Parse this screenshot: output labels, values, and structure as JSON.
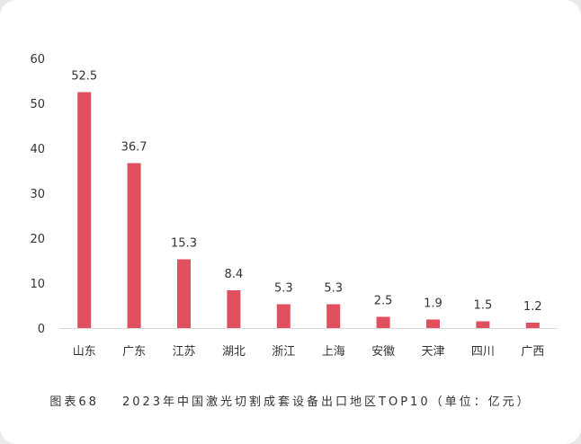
{
  "chart_data": {
    "type": "bar",
    "categories": [
      "山东",
      "广东",
      "江苏",
      "湖北",
      "浙江",
      "上海",
      "安徽",
      "天津",
      "四川",
      "广西"
    ],
    "values": [
      52.5,
      36.7,
      15.3,
      8.4,
      5.3,
      5.3,
      2.5,
      1.9,
      1.5,
      1.2
    ],
    "value_labels": [
      "52.5",
      "36.7",
      "15.3",
      "8.4",
      "5.3",
      "5.3",
      "2.5",
      "1.9",
      "1.5",
      "1.2"
    ],
    "yticks": [
      "0",
      "10",
      "20",
      "30",
      "40",
      "50",
      "60"
    ],
    "ylim": [
      0,
      60
    ],
    "grid": false,
    "legend": "none",
    "bar_color": "#e0505f",
    "title": ""
  },
  "caption": {
    "figure_no": "图表68",
    "text": "2023年中国激光切割成套设备出口地区TOP10（单位：亿元）"
  }
}
